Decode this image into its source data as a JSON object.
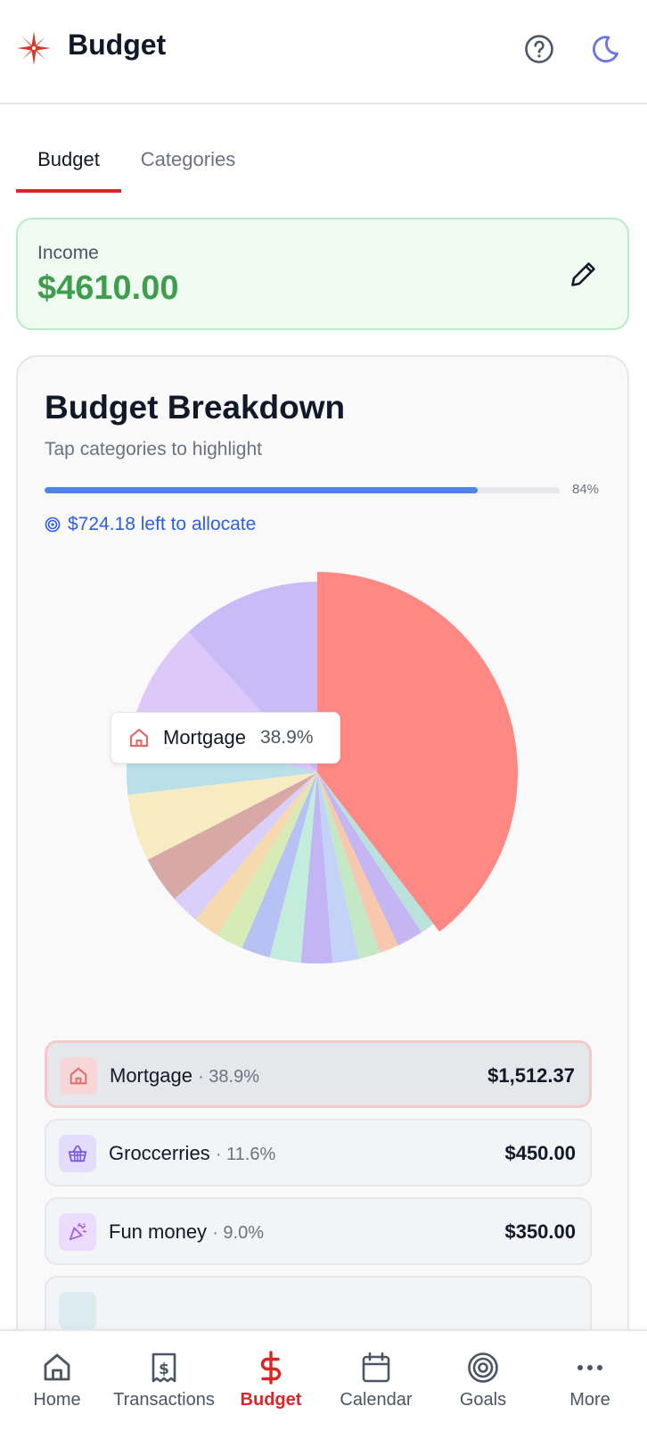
{
  "header": {
    "title": "Budget"
  },
  "tabs": [
    {
      "label": "Budget",
      "active": true
    },
    {
      "label": "Categories",
      "active": false
    }
  ],
  "income": {
    "label": "Income",
    "value": "$4610.00"
  },
  "breakdown": {
    "title": "Budget Breakdown",
    "subtitle": "Tap categories to highlight",
    "progress_percent": 84,
    "progress_label": "84%",
    "left_to_allocate": "$724.18 left to allocate"
  },
  "tooltip": {
    "label": "Mortgage",
    "percent": "38.9%"
  },
  "categories": [
    {
      "name": "Mortgage",
      "percent": "· 38.9%",
      "amount": "$1,512.37",
      "selected": true,
      "icon": "house-icon",
      "icon_bg": "#f6d6d6",
      "icon_color": "#e06c6c"
    },
    {
      "name": "Groccerries",
      "percent": "· 11.6%",
      "amount": "$450.00",
      "selected": false,
      "icon": "basket-icon",
      "icon_bg": "#e3dcfb",
      "icon_color": "#7a5ad9"
    },
    {
      "name": "Fun money",
      "percent": "· 9.0%",
      "amount": "$350.00",
      "selected": false,
      "icon": "party-popper-icon",
      "icon_bg": "#ecdcfb",
      "icon_color": "#a45ee0"
    }
  ],
  "nav": [
    {
      "label": "Home",
      "icon": "home-icon",
      "active": false
    },
    {
      "label": "Transactions",
      "icon": "receipt-icon",
      "active": false
    },
    {
      "label": "Budget",
      "icon": "dollar-icon",
      "active": true
    },
    {
      "label": "Calendar",
      "icon": "calendar-icon",
      "active": false
    },
    {
      "label": "Goals",
      "icon": "target-icon",
      "active": false
    },
    {
      "label": "More",
      "icon": "more-icon",
      "active": false
    }
  ],
  "chart_data": {
    "type": "pie",
    "highlighted": "Mortgage",
    "slices": [
      {
        "label": "Mortgage",
        "value": 38.9,
        "color": "#ff8885"
      },
      {
        "value": 1.2,
        "color": "#b9e2dc"
      },
      {
        "value": 2.2,
        "color": "#c5b5f3"
      },
      {
        "value": 1.6,
        "color": "#f7c8ae"
      },
      {
        "value": 1.8,
        "color": "#c4e8c3"
      },
      {
        "value": 2.2,
        "color": "#c3d3f7"
      },
      {
        "value": 2.6,
        "color": "#c3b5f3"
      },
      {
        "value": 2.6,
        "color": "#c2ecdb"
      },
      {
        "value": 2.4,
        "color": "#b6c2f4"
      },
      {
        "value": 2.3,
        "color": "#d6ebb6"
      },
      {
        "value": 2.2,
        "color": "#f6d9ae"
      },
      {
        "value": 2.4,
        "color": "#dacff8"
      },
      {
        "value": 3.9,
        "color": "#d8a8a6"
      },
      {
        "value": 5.6,
        "color": "#f7ebc2"
      },
      {
        "value": 5.8,
        "color": "#b9dfe8"
      },
      {
        "label": "Fun money",
        "value": 9.0,
        "color": "#ddc9f9"
      },
      {
        "label": "Groccerries",
        "value": 11.6,
        "color": "#c9bcf6"
      }
    ]
  }
}
